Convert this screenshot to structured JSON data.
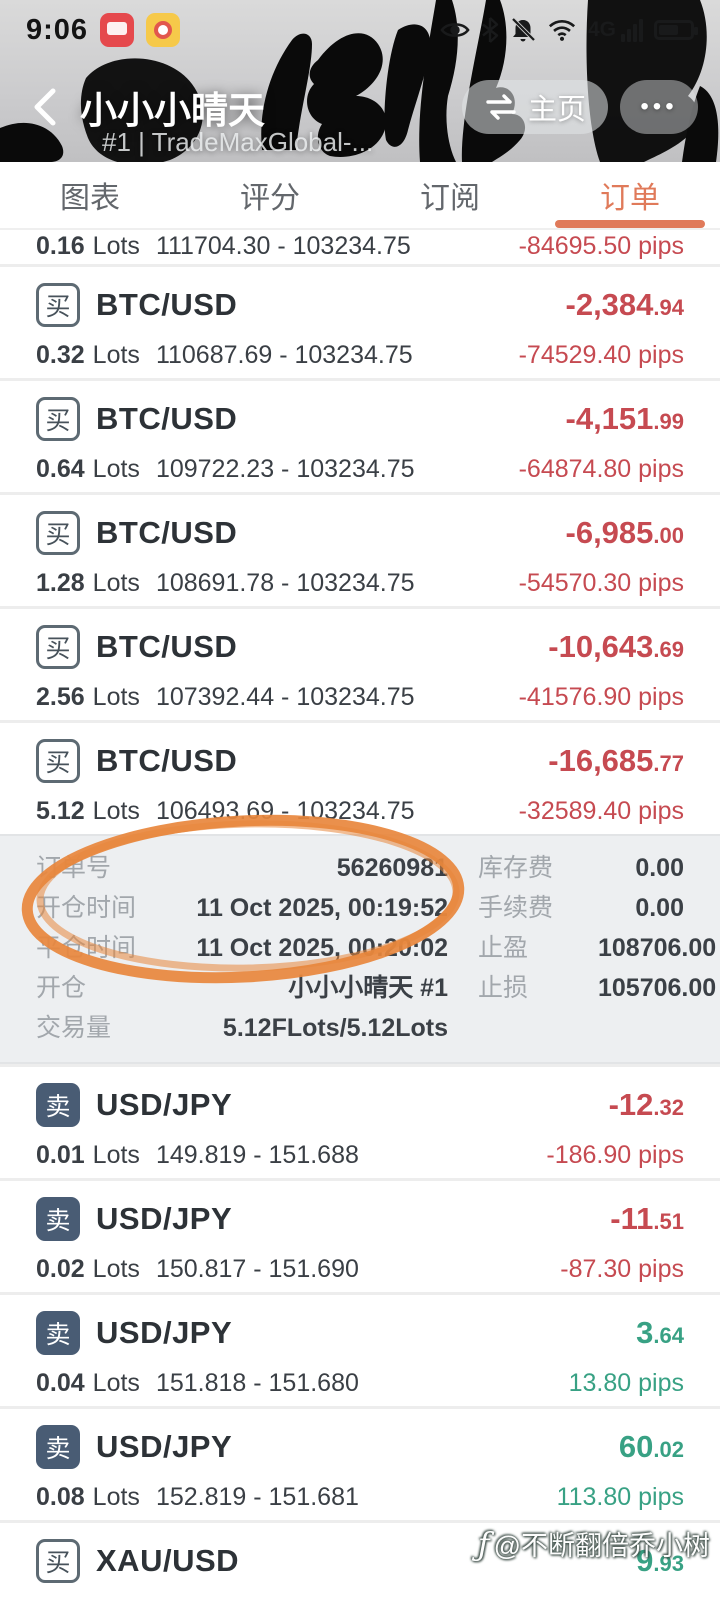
{
  "status_bar": {
    "time": "9:06",
    "network_label": "4G",
    "icons": [
      "eye-protect",
      "bluetooth",
      "notifications-muted",
      "wifi",
      "signal",
      "battery"
    ]
  },
  "header": {
    "title": "小小小晴天",
    "subtitle": "#1 | TradeMaxGlobal-...",
    "home_button": "主页",
    "more_button": "•••"
  },
  "tabs": {
    "items": [
      "图表",
      "评分",
      "订阅",
      "订单"
    ],
    "active_index": 3
  },
  "labels": {
    "lots_word": "Lots"
  },
  "orders_top": [
    {
      "side": "buy",
      "badge": "买",
      "symbol": "BTC/USD",
      "profit_main": "",
      "profit_frac": "",
      "trend": "loss",
      "lots": "0.16",
      "prices": "111704.30 - 103234.75",
      "pips": "-84695.50 pips",
      "clip": "top"
    },
    {
      "side": "buy",
      "badge": "买",
      "symbol": "BTC/USD",
      "profit_main": "-2,384",
      "profit_frac": ".94",
      "trend": "loss",
      "lots": "0.32",
      "prices": "110687.69 - 103234.75",
      "pips": "-74529.40 pips",
      "clip": ""
    },
    {
      "side": "buy",
      "badge": "买",
      "symbol": "BTC/USD",
      "profit_main": "-4,151",
      "profit_frac": ".99",
      "trend": "loss",
      "lots": "0.64",
      "prices": "109722.23 - 103234.75",
      "pips": "-64874.80 pips",
      "clip": ""
    },
    {
      "side": "buy",
      "badge": "买",
      "symbol": "BTC/USD",
      "profit_main": "-6,985",
      "profit_frac": ".00",
      "trend": "loss",
      "lots": "1.28",
      "prices": "108691.78 - 103234.75",
      "pips": "-54570.30 pips",
      "clip": ""
    },
    {
      "side": "buy",
      "badge": "买",
      "symbol": "BTC/USD",
      "profit_main": "-10,643",
      "profit_frac": ".69",
      "trend": "loss",
      "lots": "2.56",
      "prices": "107392.44 - 103234.75",
      "pips": "-41576.90 pips",
      "clip": ""
    },
    {
      "side": "buy",
      "badge": "买",
      "symbol": "BTC/USD",
      "profit_main": "-16,685",
      "profit_frac": ".77",
      "trend": "loss",
      "lots": "5.12",
      "prices": "106493.69 - 103234.75",
      "pips": "-32589.40 pips",
      "clip": ""
    }
  ],
  "detail": {
    "rows": [
      {
        "l1": "订单号",
        "v1": "56260981",
        "l2": "库存费",
        "v2": "0.00"
      },
      {
        "l1": "开仓时间",
        "v1": "11 Oct 2025, 00:19:52",
        "l2": "手续费",
        "v2": "0.00"
      },
      {
        "l1": "平仓时间",
        "v1": "11 Oct 2025, 00:20:02",
        "l2": "止盈",
        "v2": "108706.00"
      },
      {
        "l1": "开仓",
        "v1": "小小小晴天 #1",
        "l2": "止损",
        "v2": "105706.00"
      },
      {
        "l1": "交易量",
        "v1": "5.12FLots/5.12Lots",
        "l2": "",
        "v2": ""
      }
    ]
  },
  "orders_bottom": [
    {
      "side": "sell",
      "badge": "卖",
      "symbol": "USD/JPY",
      "profit_main": "-12",
      "profit_frac": ".32",
      "trend": "loss",
      "lots": "0.01",
      "prices": "149.819 - 151.688",
      "pips": "-186.90 pips",
      "clip": ""
    },
    {
      "side": "sell",
      "badge": "卖",
      "symbol": "USD/JPY",
      "profit_main": "-11",
      "profit_frac": ".51",
      "trend": "loss",
      "lots": "0.02",
      "prices": "150.817 - 151.690",
      "pips": "-87.30 pips",
      "clip": ""
    },
    {
      "side": "sell",
      "badge": "卖",
      "symbol": "USD/JPY",
      "profit_main": "3",
      "profit_frac": ".64",
      "trend": "gain",
      "lots": "0.04",
      "prices": "151.818 - 151.680",
      "pips": "13.80 pips",
      "clip": ""
    },
    {
      "side": "sell",
      "badge": "卖",
      "symbol": "USD/JPY",
      "profit_main": "60",
      "profit_frac": ".02",
      "trend": "gain",
      "lots": "0.08",
      "prices": "152.819 - 151.681",
      "pips": "113.80 pips",
      "clip": ""
    },
    {
      "side": "buy",
      "badge": "买",
      "symbol": "XAU/USD",
      "profit_main": "9",
      "profit_frac": ".93",
      "trend": "gain",
      "lots": "",
      "prices": "",
      "pips": "",
      "clip": "bottom"
    }
  ],
  "watermark": {
    "icon": "ƒ",
    "text": "@不断翻倍乔小树"
  },
  "colors": {
    "loss": "#c64a51",
    "gain": "#38a184",
    "accent": "#e07a5a",
    "circle": "#e8873d"
  }
}
